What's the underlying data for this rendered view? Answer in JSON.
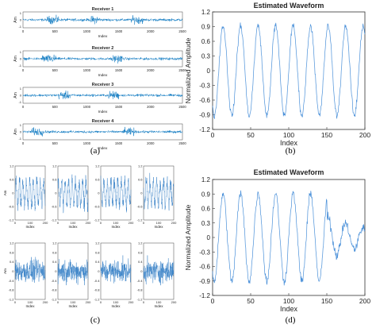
{
  "figure": {
    "panels": [
      {
        "id": "a",
        "caption": "(a)"
      },
      {
        "id": "b",
        "caption": "(b)"
      },
      {
        "id": "c",
        "caption": "(c)"
      },
      {
        "id": "d",
        "caption": "(d)"
      }
    ]
  },
  "chart_data": [
    {
      "panel": "a",
      "type": "line",
      "description_of_content": "four stacked received-signal strips",
      "xlabel": "Index",
      "ylabel": "Am",
      "xlim": [
        0,
        2500
      ],
      "xticks": [
        0,
        500,
        1000,
        1500,
        2000,
        2500
      ],
      "yticks": [
        -1,
        0,
        1
      ],
      "color": "#0072BD",
      "series": [
        {
          "name": "Receiver 1",
          "bursts": [
            [
              380,
              560
            ],
            [
              1060,
              1200
            ],
            [
              1700,
              1880
            ]
          ]
        },
        {
          "name": "Receiver 2",
          "bursts": [
            [
              300,
              520
            ],
            [
              1380,
              1560
            ]
          ]
        },
        {
          "name": "Receiver 3",
          "bursts": [
            [
              560,
              740
            ],
            [
              1340,
              1500
            ]
          ]
        },
        {
          "name": "Receiver 4",
          "bursts": [
            [
              120,
              320
            ],
            [
              1580,
              1760
            ]
          ]
        }
      ]
    },
    {
      "panel": "b",
      "type": "line",
      "title": "Estimated Waveform",
      "xlabel": "Index",
      "ylabel": "Normalized Amplitude",
      "xlim": [
        0,
        200
      ],
      "ylim": [
        -1.2,
        1.2
      ],
      "xticks": [
        0,
        50,
        100,
        150,
        200
      ],
      "yticks": [
        -1.2,
        -0.9,
        -0.6,
        -0.3,
        0,
        0.3,
        0.6,
        0.9,
        1.2
      ],
      "color": "#4A90D9",
      "series": [
        {
          "period": 23,
          "amplitude": 0.92,
          "noise": 0.1
        }
      ]
    },
    {
      "panel": "c",
      "type": "line",
      "description_of_content": "8 small noisy waveform panels",
      "xlabel": "Index",
      "ylabel": "Am",
      "xlim": [
        0,
        200
      ],
      "ylim": [
        -1.2,
        1.2
      ],
      "xticks": [
        0,
        100,
        200
      ],
      "yticks_labels": [
        "1.2",
        "0.6",
        "0",
        "-0.6",
        "-1.2"
      ],
      "yticks_labels_bottom": [
        "1.2",
        "0.8",
        "0.4",
        "0",
        "-0.4",
        "-0.8",
        "-1.2"
      ],
      "color": "#2E7BC4"
    },
    {
      "panel": "d",
      "type": "line",
      "title": "Estimated Waveform",
      "xlabel": "Index",
      "ylabel": "Normalized Amplitude",
      "xlim": [
        0,
        200
      ],
      "ylim": [
        -1.2,
        1.2
      ],
      "xticks": [
        0,
        50,
        100,
        150,
        200
      ],
      "yticks": [
        -1.2,
        -0.9,
        -0.6,
        -0.3,
        0,
        0.3,
        0.6,
        0.9,
        1.2
      ],
      "color": "#4A90D9",
      "series": [
        {
          "period": 23,
          "amplitude": 0.9,
          "noise": 0.14,
          "decay_after": 150
        }
      ]
    }
  ]
}
